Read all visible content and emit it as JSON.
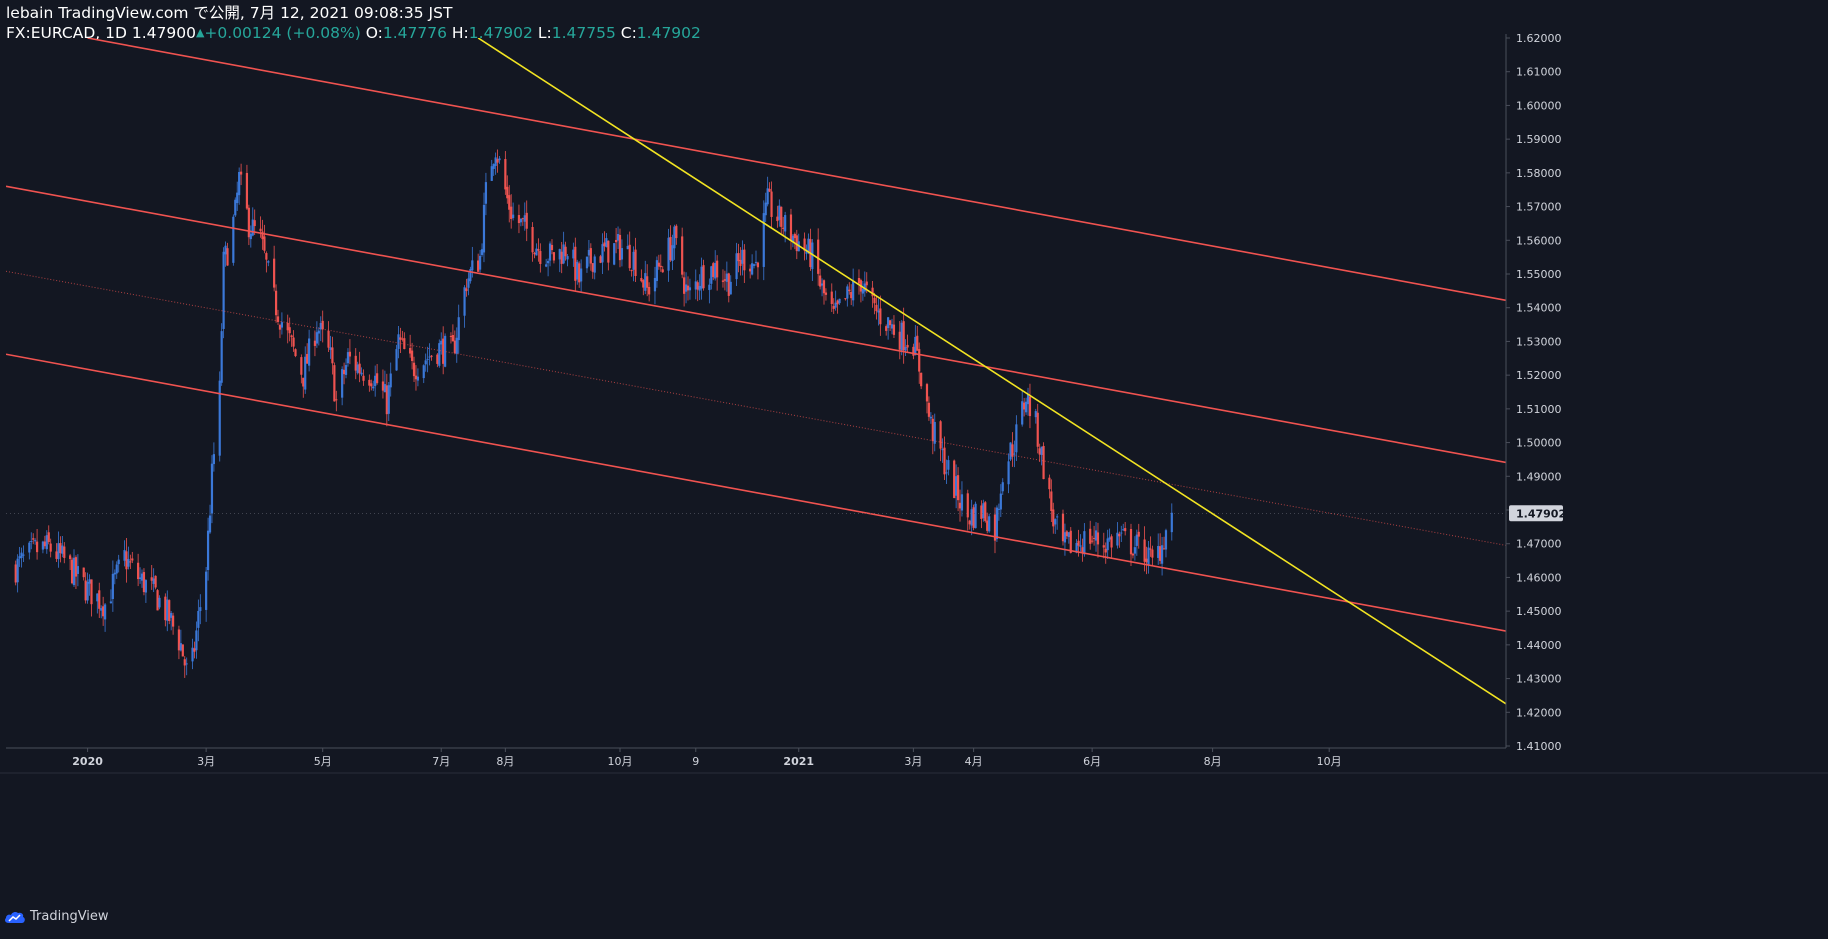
{
  "header": {
    "published": "lebain TradingView.com で公開, 7月 12, 2021 09:08:35 JST",
    "symbol": "FX:EURCAD, 1D",
    "last": "1.47900",
    "change": "+0.00124 (+0.08%)",
    "o_label": "O:",
    "o_value": "1.47776",
    "h_label": "H:",
    "h_value": "1.47902",
    "l_label": "L:",
    "l_value": "1.47755",
    "c_label": "C:",
    "c_value": "1.47902"
  },
  "footer": {
    "brand": "TradingView",
    "icon": "tradingview-cloud-icon"
  },
  "colors": {
    "background": "#131722",
    "up": "#3b78d8",
    "down": "#ef5350",
    "channel": "#f05350",
    "trendline": "#f2e422",
    "axis_text": "#d1d4dc",
    "price_badge": "#d1d4dc"
  },
  "chart_data": {
    "type": "candlestick",
    "title": "",
    "xlabel": "",
    "ylabel": "",
    "ylim": [
      1.41,
      1.62
    ],
    "y_ticks": [
      "1.41000",
      "1.42000",
      "1.43000",
      "1.44000",
      "1.45000",
      "1.46000",
      "1.47000",
      "1.48000",
      "1.49000",
      "1.50000",
      "1.51000",
      "1.52000",
      "1.53000",
      "1.54000",
      "1.55000",
      "1.56000",
      "1.57000",
      "1.58000",
      "1.59000",
      "1.60000",
      "1.61000",
      "1.62000"
    ],
    "x_ticks": [
      {
        "label": "2020",
        "date": "2020-01-01",
        "bold": true
      },
      {
        "label": "3月",
        "date": "2020-03-02"
      },
      {
        "label": "5月",
        "date": "2020-05-01"
      },
      {
        "label": "7月",
        "date": "2020-07-01"
      },
      {
        "label": "8月",
        "date": "2020-08-03"
      },
      {
        "label": "10月",
        "date": "2020-10-01"
      },
      {
        "label": "9",
        "date": "2020-11-09"
      },
      {
        "label": "2021",
        "date": "2021-01-01",
        "bold": true
      },
      {
        "label": "3月",
        "date": "2021-03-01"
      },
      {
        "label": "4月",
        "date": "2021-04-01"
      },
      {
        "label": "6月",
        "date": "2021-06-01"
      },
      {
        "label": "8月",
        "date": "2021-08-02"
      },
      {
        "label": "10月",
        "date": "2021-10-01"
      }
    ],
    "current_price": "1.47902",
    "close_path": [
      [
        "2019-11-25",
        1.463
      ],
      [
        "2019-12-05",
        1.468
      ],
      [
        "2019-12-12",
        1.469
      ],
      [
        "2019-12-20",
        1.465
      ],
      [
        "2019-12-31",
        1.457
      ],
      [
        "2020-01-10",
        1.452
      ],
      [
        "2020-01-20",
        1.466
      ],
      [
        "2020-01-27",
        1.46
      ],
      [
        "2020-02-05",
        1.455
      ],
      [
        "2020-02-12",
        1.448
      ],
      [
        "2020-02-18",
        1.44
      ],
      [
        "2020-02-21",
        1.432
      ],
      [
        "2020-02-24",
        1.435
      ],
      [
        "2020-02-27",
        1.448
      ],
      [
        "2020-03-02",
        1.463
      ],
      [
        "2020-03-05",
        1.49
      ],
      [
        "2020-03-09",
        1.515
      ],
      [
        "2020-03-11",
        1.553
      ],
      [
        "2020-03-13",
        1.557
      ],
      [
        "2020-03-17",
        1.568
      ],
      [
        "2020-03-19",
        1.578
      ],
      [
        "2020-03-24",
        1.565
      ],
      [
        "2020-03-30",
        1.56
      ],
      [
        "2020-04-06",
        1.542
      ],
      [
        "2020-04-14",
        1.53
      ],
      [
        "2020-04-21",
        1.52
      ],
      [
        "2020-04-28",
        1.535
      ],
      [
        "2020-05-05",
        1.525
      ],
      [
        "2020-05-08",
        1.512
      ],
      [
        "2020-05-14",
        1.525
      ],
      [
        "2020-05-20",
        1.522
      ],
      [
        "2020-05-27",
        1.52
      ],
      [
        "2020-06-03",
        1.512
      ],
      [
        "2020-06-09",
        1.53
      ],
      [
        "2020-06-16",
        1.522
      ],
      [
        "2020-06-23",
        1.525
      ],
      [
        "2020-06-30",
        1.528
      ],
      [
        "2020-07-07",
        1.527
      ],
      [
        "2020-07-14",
        1.548
      ],
      [
        "2020-07-21",
        1.555
      ],
      [
        "2020-07-25",
        1.58
      ],
      [
        "2020-07-29",
        1.588
      ],
      [
        "2020-08-04",
        1.572
      ],
      [
        "2020-08-07",
        1.567
      ],
      [
        "2020-08-14",
        1.563
      ],
      [
        "2020-08-21",
        1.557
      ],
      [
        "2020-08-28",
        1.555
      ],
      [
        "2020-09-04",
        1.558
      ],
      [
        "2020-09-10",
        1.548
      ],
      [
        "2020-09-17",
        1.555
      ],
      [
        "2020-09-24",
        1.557
      ],
      [
        "2020-10-01",
        1.558
      ],
      [
        "2020-10-08",
        1.555
      ],
      [
        "2020-10-15",
        1.545
      ],
      [
        "2020-10-22",
        1.553
      ],
      [
        "2020-10-29",
        1.56
      ],
      [
        "2020-11-05",
        1.543
      ],
      [
        "2020-11-12",
        1.55
      ],
      [
        "2020-11-19",
        1.552
      ],
      [
        "2020-11-26",
        1.548
      ],
      [
        "2020-12-03",
        1.555
      ],
      [
        "2020-12-10",
        1.553
      ],
      [
        "2020-12-16",
        1.571
      ],
      [
        "2020-12-22",
        1.566
      ],
      [
        "2020-12-31",
        1.56
      ],
      [
        "2021-01-08",
        1.555
      ],
      [
        "2021-01-13",
        1.545
      ],
      [
        "2021-01-19",
        1.537
      ],
      [
        "2021-01-26",
        1.543
      ],
      [
        "2021-02-02",
        1.548
      ],
      [
        "2021-02-08",
        1.54
      ],
      [
        "2021-02-15",
        1.536
      ],
      [
        "2021-02-22",
        1.532
      ],
      [
        "2021-03-01",
        1.53
      ],
      [
        "2021-03-05",
        1.52
      ],
      [
        "2021-03-10",
        1.505
      ],
      [
        "2021-03-15",
        1.497
      ],
      [
        "2021-03-22",
        1.487
      ],
      [
        "2021-03-29",
        1.478
      ],
      [
        "2021-04-06",
        1.48
      ],
      [
        "2021-04-12",
        1.474
      ],
      [
        "2021-04-16",
        1.492
      ],
      [
        "2021-04-22",
        1.5
      ],
      [
        "2021-04-28",
        1.514
      ],
      [
        "2021-05-03",
        1.505
      ],
      [
        "2021-05-07",
        1.493
      ],
      [
        "2021-05-12",
        1.477
      ],
      [
        "2021-05-17",
        1.469
      ],
      [
        "2021-05-24",
        1.47
      ],
      [
        "2021-05-31",
        1.472
      ],
      [
        "2021-06-07",
        1.47
      ],
      [
        "2021-06-14",
        1.472
      ],
      [
        "2021-06-21",
        1.47
      ],
      [
        "2021-06-28",
        1.468
      ],
      [
        "2021-07-02",
        1.464
      ],
      [
        "2021-07-07",
        1.47
      ],
      [
        "2021-07-12",
        1.479
      ]
    ],
    "lines": [
      {
        "name": "channel-upper",
        "style": "solid",
        "color": "channel",
        "from": [
          "2020-01-01",
          1.62
        ],
        "to": [
          "2021-12-31",
          1.5422
        ]
      },
      {
        "name": "channel-middle",
        "style": "solid",
        "color": "channel",
        "from": [
          "2019-11-20",
          1.576
        ],
        "to": [
          "2021-12-31",
          1.4941
        ]
      },
      {
        "name": "channel-mid-dotted",
        "style": "dotted",
        "color": "channel",
        "from": [
          "2019-11-20",
          1.5508
        ],
        "to": [
          "2021-12-31",
          1.4695
        ]
      },
      {
        "name": "channel-lower",
        "style": "solid",
        "color": "channel",
        "from": [
          "2019-11-20",
          1.5262
        ],
        "to": [
          "2021-12-31",
          1.4441
        ]
      },
      {
        "name": "trendline",
        "style": "solid",
        "color": "trendline",
        "from": [
          "2020-07-20",
          1.62
        ],
        "to": [
          "2021-12-31",
          1.4225
        ]
      }
    ]
  }
}
